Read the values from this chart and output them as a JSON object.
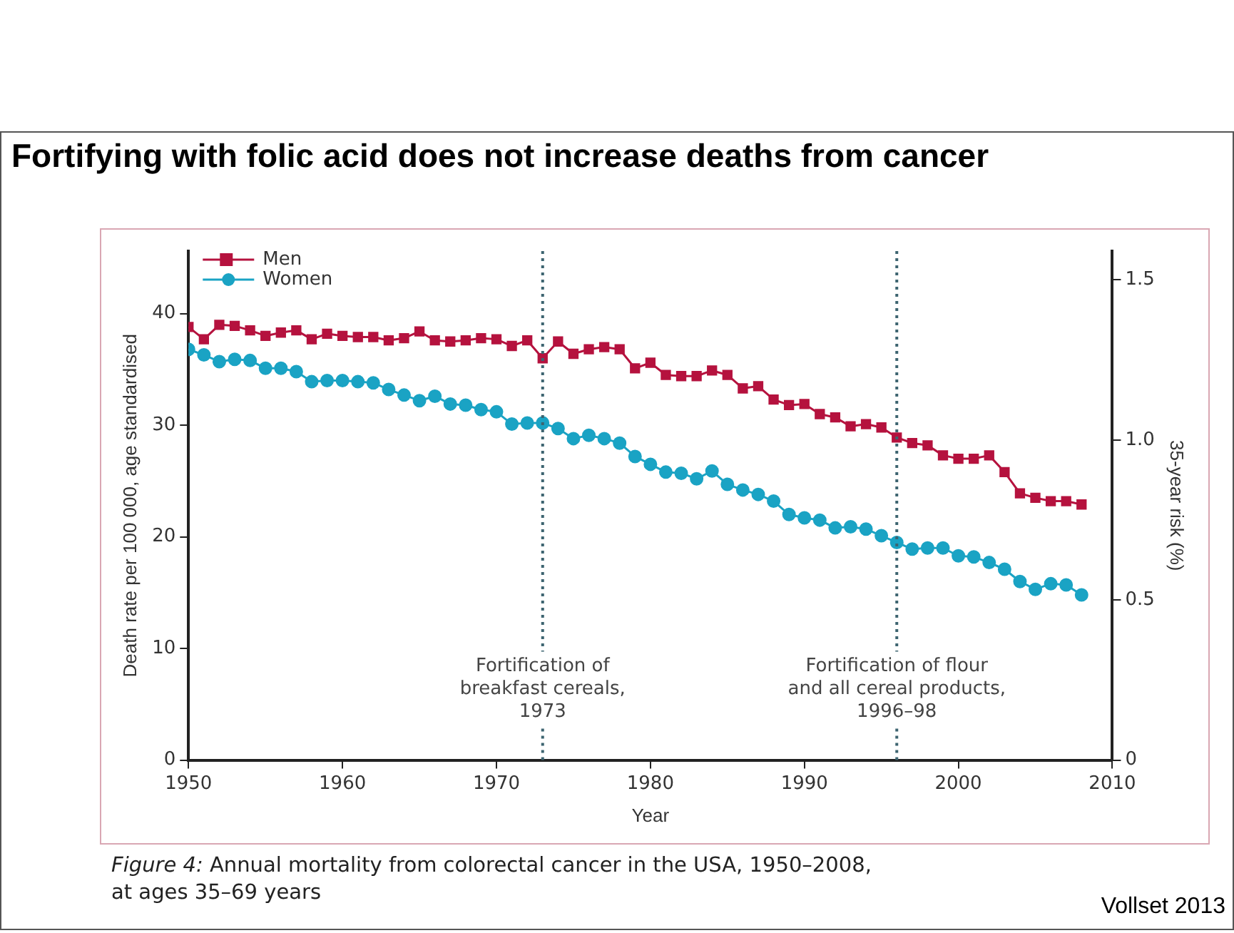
{
  "chart_data": {
    "type": "line",
    "title": "Fortifying with folic acid does not increase deaths from cancer",
    "xlabel": "Year",
    "ylabel": "Death rate per 100 000, age standardised",
    "y2label": "35-year risk (%)",
    "x": [
      1950,
      1951,
      1952,
      1953,
      1954,
      1955,
      1956,
      1957,
      1958,
      1959,
      1960,
      1961,
      1962,
      1963,
      1964,
      1965,
      1966,
      1967,
      1968,
      1969,
      1970,
      1971,
      1972,
      1973,
      1974,
      1975,
      1976,
      1977,
      1978,
      1979,
      1980,
      1981,
      1982,
      1983,
      1984,
      1985,
      1986,
      1987,
      1988,
      1989,
      1990,
      1991,
      1992,
      1993,
      1994,
      1995,
      1996,
      1997,
      1998,
      1999,
      2000,
      2001,
      2002,
      2003,
      2004,
      2005,
      2006,
      2007,
      2008
    ],
    "series": [
      {
        "name": "Men",
        "color": "#b5123e",
        "marker": "square",
        "values": [
          38.8,
          37.7,
          39.0,
          38.9,
          38.5,
          38.0,
          38.3,
          38.5,
          37.7,
          38.2,
          38.0,
          37.9,
          37.9,
          37.6,
          37.8,
          38.4,
          37.6,
          37.5,
          37.6,
          37.8,
          37.7,
          37.1,
          37.6,
          36.0,
          37.5,
          36.4,
          36.8,
          37.0,
          36.8,
          35.1,
          35.6,
          34.5,
          34.4,
          34.4,
          34.9,
          34.5,
          33.3,
          33.5,
          32.3,
          31.8,
          31.9,
          31.0,
          30.7,
          29.9,
          30.1,
          29.8,
          28.9,
          28.4,
          28.2,
          27.3,
          27.0,
          27.0,
          27.3,
          25.8,
          23.9,
          23.5,
          23.2,
          23.2,
          22.9
        ]
      },
      {
        "name": "Women",
        "color": "#1aa3c4",
        "marker": "circle",
        "values": [
          36.8,
          36.3,
          35.7,
          35.9,
          35.8,
          35.1,
          35.1,
          34.8,
          33.9,
          34.0,
          34.0,
          33.9,
          33.8,
          33.2,
          32.7,
          32.2,
          32.6,
          31.9,
          31.8,
          31.4,
          31.2,
          30.1,
          30.2,
          30.2,
          29.7,
          28.8,
          29.1,
          28.8,
          28.4,
          27.2,
          26.5,
          25.8,
          25.7,
          25.2,
          25.9,
          24.7,
          24.2,
          23.8,
          23.2,
          22.0,
          21.7,
          21.5,
          20.8,
          20.9,
          20.7,
          20.1,
          19.5,
          18.9,
          19.0,
          19.0,
          18.3,
          18.2,
          17.7,
          17.1,
          16.0,
          15.3,
          15.8,
          15.7,
          14.8
        ]
      }
    ],
    "xlim": [
      1950,
      2010
    ],
    "xticks": [
      1950,
      1960,
      1970,
      1980,
      1990,
      2000,
      2010
    ],
    "ylim": [
      0,
      45.6
    ],
    "yticks": [
      0,
      10,
      20,
      30,
      40
    ],
    "y2lim": [
      0,
      1.59
    ],
    "y2ticks": [
      0,
      0.5,
      {
        "value": 1,
        "label": "1.0"
      },
      1.5
    ],
    "ref_lines": [
      {
        "axis": "x",
        "value": 1973,
        "label": "Fortification of\nbreakfast cereals,\n1973",
        "color": "#3d6470",
        "line_style": "dotted"
      },
      {
        "axis": "x",
        "value": 1996,
        "label": "Fortification of flour\nand all cereal products,\n1996–98",
        "color": "#3d6470",
        "line_style": "dotted"
      }
    ],
    "legend": "top left",
    "grid": false,
    "line_style": "solid",
    "annotations": [
      "*Figure 4:* Annual mortality from colorectal cancer in the USA, 1950–2008,\nat ages 35–69 years",
      "Vollset 2013"
    ]
  }
}
